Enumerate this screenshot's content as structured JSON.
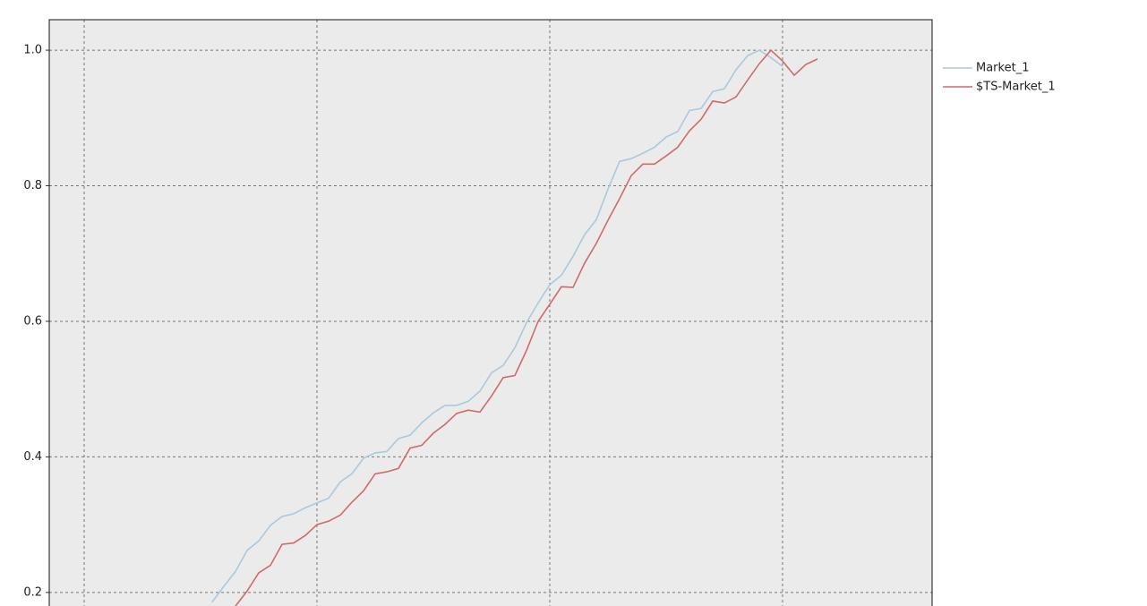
{
  "chart_data": {
    "type": "line",
    "x": [
      21,
      22,
      23,
      24,
      25,
      26,
      27,
      28,
      29,
      30,
      31,
      32,
      33,
      34,
      35,
      36,
      37,
      38,
      39,
      40,
      41,
      42,
      43,
      44,
      45,
      46,
      47,
      48,
      49,
      50,
      51,
      52,
      53,
      54,
      55,
      56,
      57,
      58,
      59,
      60,
      61,
      62,
      63,
      64,
      65,
      66,
      67,
      68,
      69,
      70,
      71,
      72,
      73
    ],
    "series": [
      {
        "name": "Market_1",
        "color": "#a9c9de",
        "values": [
          0.186,
          0.209,
          0.231,
          0.262,
          0.276,
          0.299,
          0.312,
          0.316,
          0.325,
          0.332,
          0.339,
          0.363,
          0.375,
          0.398,
          0.406,
          0.408,
          0.427,
          0.432,
          0.45,
          0.465,
          0.476,
          0.476,
          0.482,
          0.497,
          0.524,
          0.535,
          0.561,
          0.598,
          0.627,
          0.654,
          0.668,
          0.696,
          0.728,
          0.75,
          0.795,
          0.836,
          0.84,
          0.848,
          0.857,
          0.872,
          0.88,
          0.911,
          0.914,
          0.939,
          0.943,
          0.971,
          0.992,
          1.0,
          0.989,
          0.976,
          null,
          null,
          null
        ]
      },
      {
        "name": "$TS-Market_1",
        "color": "#d16a6a",
        "values": [
          null,
          null,
          0.18,
          0.202,
          0.229,
          0.24,
          0.271,
          0.273,
          0.284,
          0.3,
          0.305,
          0.314,
          0.333,
          0.35,
          0.375,
          0.378,
          0.383,
          0.413,
          0.417,
          0.435,
          0.448,
          0.464,
          0.469,
          0.466,
          0.49,
          0.517,
          0.52,
          0.557,
          0.6,
          0.625,
          0.651,
          0.65,
          0.686,
          0.715,
          0.749,
          0.781,
          0.815,
          0.832,
          0.832,
          0.844,
          0.857,
          0.881,
          0.898,
          0.925,
          0.922,
          0.931,
          0.956,
          0.98,
          1.0,
          0.984,
          0.963,
          0.979,
          0.987
        ]
      }
    ],
    "xlim": [
      7,
      82.85
    ],
    "xticks": [
      10,
      30,
      50,
      70
    ],
    "ylim": [
      0.18,
      1.045
    ],
    "yticks": [
      0.2,
      0.4,
      0.6,
      0.8,
      {
        "value": 1,
        "label": "1.0"
      }
    ],
    "grid": true,
    "legend": "right",
    "background": "#ebebeb"
  }
}
